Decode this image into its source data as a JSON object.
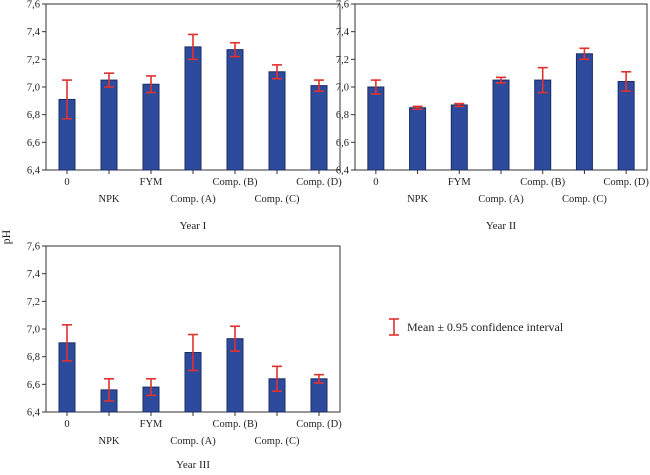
{
  "chart_data": {
    "type": "bar",
    "ylabel": "pH",
    "ylim": [
      6.4,
      7.6
    ],
    "yticks": [
      "6,4",
      "6,6",
      "6,8",
      "7,0",
      "7,2",
      "7,4",
      "7,6"
    ],
    "categories": [
      "0",
      "NPK",
      "FYM",
      "Comp. (A)",
      "Comp. (B)",
      "Comp. (C)",
      "Comp. (D)"
    ],
    "bar_color": "#2E4A9C",
    "error_color": "#E0322E",
    "legend": "Mean ± 0.95 confidence interval",
    "grid": false,
    "panels": [
      {
        "title": "Year I",
        "values": [
          6.91,
          7.05,
          7.02,
          7.29,
          7.27,
          7.11,
          7.01
        ],
        "ci": [
          0.14,
          0.05,
          0.06,
          0.09,
          0.05,
          0.05,
          0.04
        ]
      },
      {
        "title": "Year II",
        "values": [
          7.0,
          6.85,
          6.87,
          7.05,
          7.05,
          7.24,
          7.04
        ],
        "ci": [
          0.05,
          0.01,
          0.01,
          0.02,
          0.09,
          0.04,
          0.07
        ]
      },
      {
        "title": "Year III",
        "values": [
          6.9,
          6.56,
          6.58,
          6.83,
          6.93,
          6.64,
          6.64
        ],
        "ci": [
          0.13,
          0.08,
          0.06,
          0.13,
          0.09,
          0.09,
          0.03
        ]
      }
    ]
  }
}
